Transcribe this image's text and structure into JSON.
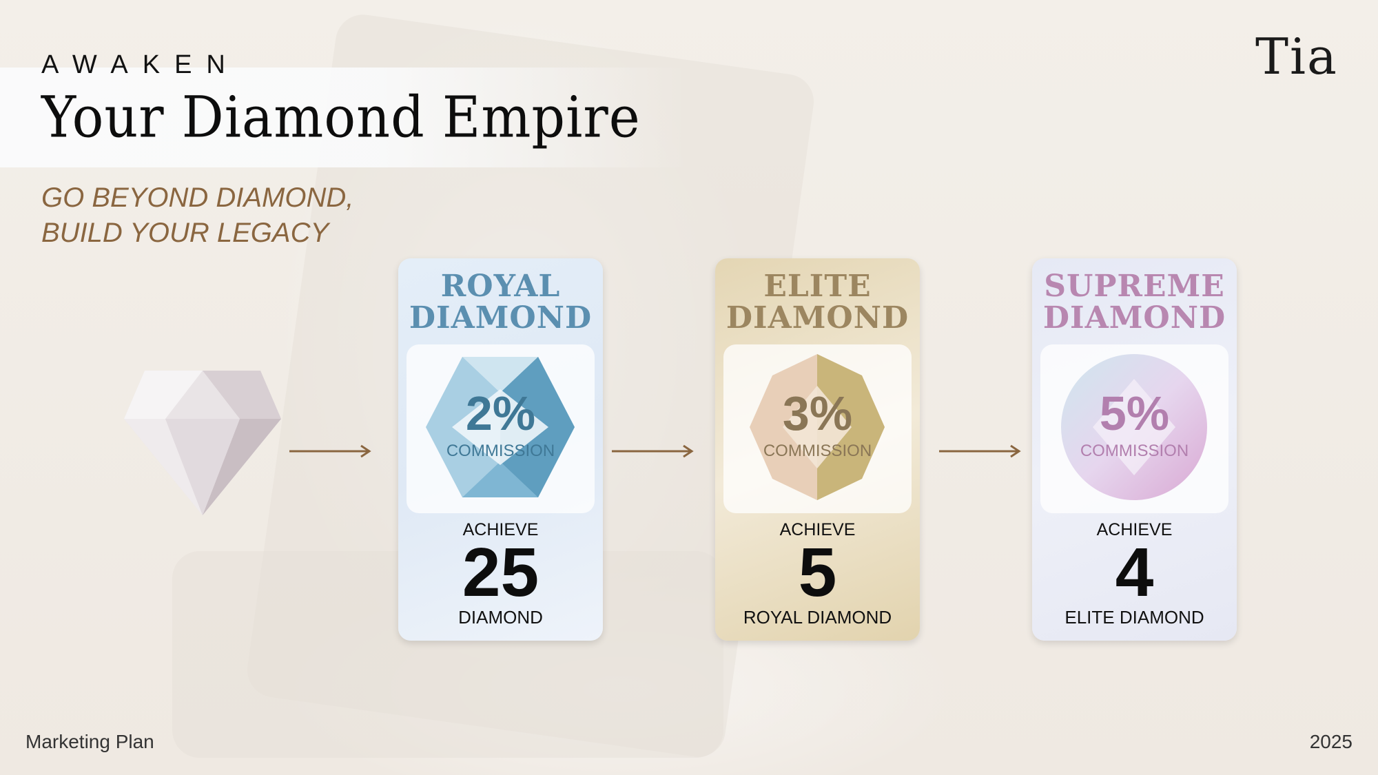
{
  "header": {
    "kicker": "AWAKEN",
    "title": "Your Diamond Empire",
    "subtitle_lines": [
      "GO BEYOND DIAMOND,",
      "BUILD YOUR LEGACY"
    ]
  },
  "brand": {
    "logo": "Tia"
  },
  "start_icon": "diamond-icon",
  "tiers": [
    {
      "title_lines": [
        "ROYAL",
        "DIAMOND"
      ],
      "percent": "2%",
      "commission": "COMMISSION",
      "achieve": "ACHIEVE",
      "count": "25",
      "requirement": "DIAMOND",
      "color": "#5b8fb0"
    },
    {
      "title_lines": [
        "ELITE",
        "DIAMOND"
      ],
      "percent": "3%",
      "commission": "COMMISSION",
      "achieve": "ACHIEVE",
      "count": "5",
      "requirement": "ROYAL DIAMOND",
      "color": "#9c8660"
    },
    {
      "title_lines": [
        "SUPREME",
        "DIAMOND"
      ],
      "percent": "5%",
      "commission": "COMMISSION",
      "achieve": "ACHIEVE",
      "count": "4",
      "requirement": "ELITE DIAMOND",
      "color": "#b887b0"
    }
  ],
  "colors": {
    "accent": "#8a6640",
    "background": "#f1ede7"
  },
  "footer": {
    "left": "Marketing Plan",
    "right": "2025"
  }
}
